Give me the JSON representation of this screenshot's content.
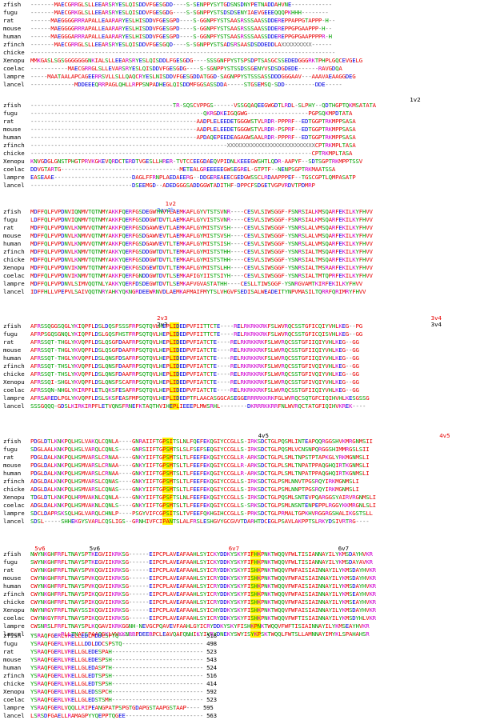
{
  "colors": {
    "hydrophobic": "#e60000",
    "polar": "#00a000",
    "basic": "#d000d0",
    "acidic": "#0000e0",
    "gap": "#666666",
    "highlight": "#fff200",
    "annotation_red": "#e60000",
    "annotation_blue": "#3366ff",
    "annotation_black": "#000000"
  },
  "blocks": [
    {
      "annotations": [],
      "rows": [
        {
          "name": "zfish",
          "seq": "-------MAECGRRGLSLLEEARSRYESLQISDDVFGESGDD----S-SENPPYSYTGDSNSDNYPETNADDAHVNE------------"
        },
        {
          "name": "fugu",
          "seq": "-------MAECGRKGLSLLEEARSRYESLQISDDVFGESGDG----S-SGNPPYSTSDSDSENYIAEVGEEEQQQPKHHH--------"
        },
        {
          "name": "rat",
          "seq": "------MAEGGGGRRRAPALLEAARARYESLHISDDVFGESGPD----S-GGNPFYSTSAASRSSSAASSDDEREPPAPPGTAPPP-H--"
        },
        {
          "name": "mouse",
          "seq": "------MAEGGGGRRRAPALLEAARARYESLHISDDVFGESGPD----S-GGNPFYSTSAASRSSSAASSDDEREPPGPGAAPPP-H--"
        },
        {
          "name": "human",
          "seq": "------MAEGGGARRRAPALLEAARARYESLHISDDVFGESGPD----S-GGNPFYSTSAASRSSSAASSDDEREPPGPGAAPPPPR-H"
        },
        {
          "name": "zfinch",
          "seq": "-------MAECGRRGLSLLEEARSRYESLQISDDVFGESGQD----S-SGNPPYSTSADSRSAASDSDDEDDLAXXXXXXXXX------"
        },
        {
          "name": "chicke",
          "seq": "------------------------------------------------------------------------------------------"
        },
        {
          "name": "Xenopu",
          "seq": "MMKGASLSGSGGGGGGGNKIALSLLEEARSRYESLQISDDLFGESGDG----SSSGNFPYSTSPSDPTSASGCSSEDEDGGGRKTPHPLGQCEVGELG"
        },
        {
          "name": "coelac",
          "seq": "-----------MAECGRRGLSLLEVARSRYESLQISDDVFGESGDG----S-SGNPPYSTSSDSSGENYVSDSDGDEDE------RAVGDQA"
        },
        {
          "name": "lampre",
          "seq": "-----MAATAALAPCAGEERRSVLLSLLQAQCRYESLNISDDVFGESGDDATGGD-SAGNPPYSTSSSASSDDDGGGAAV---AAAVAEAAGGDEG"
        },
        {
          "name": "lancel",
          "seq": "-------------MDDEEEQRRPAGLQHLLRPPSNPADHEGLQISDDMFGGSASSDDA-----STGSEMSQ-SDD---------DDE-----"
        }
      ]
    },
    {
      "annotations": [
        {
          "text": "1v2",
          "color": "#000000",
          "col": 90
        }
      ],
      "rows": [
        {
          "name": "zfish",
          "seq": "------------------------------------------TR-SQSCVPPGS------VSSGQAQEEGWGDTLRDL-SLPHY--QDTHGPTQKMSATATA"
        },
        {
          "name": "fugu",
          "seq": "---------------------------------------------------QKRGDKEIGQGWG------------------PGPSQKMPDTATA"
        },
        {
          "name": "rat",
          "seq": "-------------------------------------------------AADPLELEEDETGGGWSTVLRDR-PPPRF--EDTGGPTRKMPPSASA"
        },
        {
          "name": "mouse",
          "seq": "-------------------------------------------------AADPLELEEDETGGGWSTVLRDR-PSPRF--EDTGGPTRKMPPSASA"
        },
        {
          "name": "human",
          "seq": "-------------------------------------------------APDAQEPEEDEAGAGWSAALRDR-PPPRF--EDTGGPTRKMPPSASA"
        },
        {
          "name": "zfinch",
          "seq": "----------------------------------------------------------XXXXXXXXXXXXXXXXXXXXXXXXXXCPTRKMPLTASA"
        },
        {
          "name": "chicke",
          "seq": "-----------------------------------------------------------------------------------CPTRKMPLTASA"
        },
        {
          "name": "Xenopu",
          "seq": "KNVGDGLGNSTPHGTPRVKGKEVQRDCTERDTVGESLLHRER-TVTCCEEGDAEQVPIDNLKEEEGWSHTLQDR-AAPYF--SDTSGPTRKMPPTSSV"
        },
        {
          "name": "coelac",
          "seq": "DDVGTARTG-----------------------------------METEALGREEEEEGWSEGREL-GTPTF--NENPSGPTRKMAATSSA"
        },
        {
          "name": "lampre",
          "seq": "EASEAAE-----------------------DAGLFFRNPLAEDAEERG--DDGEREAEECGEDGWSSCLRDAAPPPEF--TGSCGPTLQMPASATP"
        },
        {
          "name": "lancel",
          "seq": "------------------------------DSEEMGD--ADEDGGGSADDGGWTADITHF-DPPCFSDGETVGPVRDVTPDMRP"
        }
      ]
    },
    {
      "annotations": [
        {
          "text": "1v2",
          "color": "#e60000",
          "col": 32
        },
        {
          "text": "2av2b",
          "color": "#3366ff",
          "col": 30
        }
      ],
      "rows": [
        {
          "name": "zfish",
          "seq": "MDFFQLFVPDNVIQNMVTQTNMYAKKFQERFGSDEGWTNVTLAEMKAFLGYVTSTSVNR----CESVLSIWSGGF-FSNRSIALKMSQARFEKILKYFHVV"
        },
        {
          "name": "fugu",
          "seq": "LDFFQLFVPDNVIQNMVTQTNMYAKKFQERFGSDDGWTDVTLAEMKAFLGYVISTSVNR----CESVLSIWSGGF-FSNRSIALKMSQARFEKILKYFHVV"
        },
        {
          "name": "rat",
          "seq": "MDFFQLFVPDNVLKNMVVQTNMYAKKFQERFGSDGAWVEVTLAEMKAFLGYMISTSVSH----CESVLSIWSGGF-YSNRSLALVMSQARFEKILKYFHVV"
        },
        {
          "name": "mouse",
          "seq": "MDFFQLFVPDNVLKNMVVQTNMYAKKFQERFGSDGAWVEVTLAEMKAFLGYMISTSVSH----CESVLSIWSGGF-YSNRSLALVMSQARFEKILKYFHVV"
        },
        {
          "name": "human",
          "seq": "MDFFQLFVPDNVLKNMVVQTNMYAKKFQERFGSDGAWVEVTLTEMKAFLGYMISTSISH----CESVLSIWSGGF-YSNRSLALVMSQARFEKILKYFHVV"
        },
        {
          "name": "zfinch",
          "seq": "MDFFQLFVPDNVLKNMVTQTNMYAKKYQERFGSDDGWTDVTLTEMKAFLGYMISTSTHH----CESVLSIWSGGF-YSNRSIALTMSQARFEKILKYFHVV"
        },
        {
          "name": "chicke",
          "seq": "MDFFQLFVPDNVLKNMVTQTNMYAKKYQERFGSDDGWTDVTLTEMKAFLGYMISTSTHH----CESVLSIWSGGF-YSNRSIALTMSQARFEKILKYFHVV"
        },
        {
          "name": "Xenopu",
          "seq": "MDFFQLFVPDNVIKNMVTQTNMYAKKFQEKFGSDGEWTDVTLTEMKAFLGYMISTSLHH----CESVLSIWSGGF-YSNRSIALTMSRARFEKILKYFHVV"
        },
        {
          "name": "coelac",
          "seq": "MDFFQLFVPDNVIKNMVTQTNMYAKKFQERFGNDDGWTDVTLSEMKAFIGYIISTSIYH----CESVLSIWSGGF-YSNRSIALTMTQPRFEKILKYFHVV"
        },
        {
          "name": "lampre",
          "seq": "MDFFQLFVPDNVLSIMVQQTNLYAKKYQERFDSDEGWTDVTLSEMKAFVGVASTATHH----CESLLTIWSGGF-YSNRGVAMTKIRFEKILKYFHVV"
        },
        {
          "name": "lancel",
          "seq": "IDFFHLLVPEPVLSAIVQQTNRYAHKYQKNGRDEEWRNVDLAEMKAFMAIFMYTSLVHGVFSEDISALWEADEITYNPVMASILTQRRFQRIMRYFHVV"
        }
      ]
    },
    {
      "annotations": [
        {
          "text": "2v3",
          "color": "#e60000",
          "col": 30
        },
        {
          "text": "2v3",
          "color": "#000000",
          "col": 30
        },
        {
          "text": "3v4",
          "color": "#e60000",
          "col": 95
        },
        {
          "text": "3v4",
          "color": "#000000",
          "col": 95
        }
      ],
      "rows": [
        {
          "name": "zfish",
          "seq": "AFRSSQGGSQGLYKIQPFLDSLDQSFSSSFRPSQTQVLHEPLIDEDPVFIITTCTE----RELRKRKKRKFSLWVRQCSSTGFICQIYVHLKEG--PG"
        },
        {
          "name": "fugu",
          "seq": "AFRPSGQSGNQLYKIQPFLDSLGQSFHSTFRPSQTQVLHEPLIDEDPVFIITTCTE----RELRKRKKRKFSLWVRQCSSTGFICQISVHLKEG--GG"
        },
        {
          "name": "rat",
          "seq": "AFRSSQT-THGLYKVQPFLDSLQSGFDAAFRPSQTQVLHEPLIDEDPVFIATCTE----RELRKRKKRKFSLWVRQCSSTGFIIQIYVHLKEG--GG"
        },
        {
          "name": "mouse",
          "seq": "AFRSSQT-THGLYKVQPFLDSLQSGFDAAFRPSQTQVLHEPLIDEDPVFIATCTE----RELRKRKKRKFSLWVRQCSSTGFIIQIYVHLKEG--GG"
        },
        {
          "name": "human",
          "seq": "AFRSSQT-THGLYKVQPFLDSLQNSFDSAFRPSQTQVLHEPLIDEDPVFIATCTE----RELRKRKKRKFSLWVRQCSSTGFIIQIYVHLKEG--GG"
        },
        {
          "name": "zfinch",
          "seq": "AFRSSQT-THSLYKVQPFLDSLQNSFDAAFRPSQTQVLHEPLIDEDPVFIATCTE----RELRKRKKRKFSLWVRQCSSTGFIVQIYVHLKEG--GG"
        },
        {
          "name": "chicke",
          "seq": "AFRSSQT-THSLYKVQPFLDSLQNSFDAAFRPSQTQVLHEPLIDEDPVFIATCTE----RELRKRKKRKFSLWVRQCSSTGFIVQIYVHLKEG--GG"
        },
        {
          "name": "Xenopu",
          "seq": "AFRSSQI-SHGLYKVQPFLDSLQNSFSCAFRPSQTQVLHEPLIDEDPVFIATCTE----RELRKRKKRKFSLWVRQCSSTGFIVQIYVHLKEG--GG"
        },
        {
          "name": "coelac",
          "seq": "AFRSSQN-NHGLYKIRPFLETLQKSFESAFRPSQTQVLHEPLIDEDPVFIATCTE----RELRKRKKRKFSLWVRQCSSTGFIIQIYVHLKEG--GG"
        },
        {
          "name": "lampre",
          "seq": "AFRSAREDLPGLYKVQPFLDSLSKSFEASFMPSQTQVLHEPLIDEDPTFLAACASGGCASEGGERRRRKKRKFGLWVRQCSQTGFCIQIHVHLKESGSSG"
        },
        {
          "name": "lancel",
          "seq": "SSSGQQQ-GDSLKIRKIRPFLETVQNSFRNEFKTAQTHVIHEPLIEEEPLMWSRHL--------DKRRRKKRRFNLWVRQCTATGFIQIHVKREK----"
        }
      ]
    },
    {
      "annotations": [
        {
          "text": "4v5",
          "color": "#000000",
          "col": 54
        },
        {
          "text": "4v5",
          "color": "#e60000",
          "col": 97
        }
      ],
      "rows": [
        {
          "name": "zfish",
          "seq": "PDGLDTLKNKPQLHSLVAKQLCQNLA----GNRAIIFTGPSITSLNLFQEFEKQGIYCCGLLS-IRKSDCTGLPQSMLINTEAPQQRGGSHVKMRGNMSII"
        },
        {
          "name": "fugu",
          "seq": "SDGLAALKNKPQLHSLVARQLCQNLS----GNRSIIFTGPSMTSLSLFSEFSEQGIYCCGLLS-IRKSDCTGLPQSMLVCNSNPQRGGSHIMMRGSLSII"
        },
        {
          "name": "rat",
          "seq": "PDGLDALKNKPQLHSMVARSLCRNAA----GNKYIIFTGPSMTSLTLFEEFEKQGIYCCGLLR-ARKSDCTGLPLSMLTNPSTPTAPKGLYRKMGNMSLI"
        },
        {
          "name": "mouse",
          "seq": "PDGLDALKNKPQLHSMVARSLCRNAA----GNKYIIFTGPSMTSLTLFEEFEKQGIYCCGLLR-ARKSDCTGLPLSMLTNPATPPAQGHQIRTKGNMSLI"
        },
        {
          "name": "human",
          "seq": "PDGLDALKNKPQLHSMVARSLCRNAA----GNKYIIFTGPSMTSLTLFEEFEKQGIYCCGLLR-ARKSDCTGLPLSMLTNPATPPAQGHQIRTKGNMSLI"
        },
        {
          "name": "zfinch",
          "seq": "ADGLDALKNKPQLHSMVARSLCQNAS----GNKYIIFTGPSMTSLTLFEEFEKQGIYCCGLLS-IRKSDCTGLPSMLNNVTPGSRQYIRKMGNMSLI"
        },
        {
          "name": "chicke",
          "seq": "ADGLDALKNKPQLHSMVARSLCQNAS----GNKYIIFTGPSMTSLTLFEEFEKQGIYCCGLLS-IRKSDCTGLPSMLNNPTPGSRQYIRKMGNMSLI"
        },
        {
          "name": "Xenopu",
          "seq": "TDGLDTLKNKPQLHRMVAKNLCQNLA----GNKYIIFTGPSFTSLNLFEEFEKQGIYCCGLLS-IRKSDCTGLPQSMLSNTEVPQARGGSYAIRVRGNMSLI"
        },
        {
          "name": "coelac",
          "seq": "ADGLDALKNKPQLHSMVAKNLCQNLS----GNKYIIFTGPSMTSLTLFEEFEKQGIYCCGLLS-SRKSDCTGLPSMLNSNTENPEPPLRGGYKKMRGNLSLI"
        },
        {
          "name": "lampre",
          "seq": "SDCLDAPRSKSQLHGLVARQLCHNLP----PSGYVIFCGPSITSLTVFEEFQKHGIHCCGLLS-PRKSDCTGLPRMALTGPKHVRGGRGSHALIKGSTSLL"
        },
        {
          "name": "lancel",
          "seq": "SDSL-----SHHEKGYSVARLCQSLIGS--GRNHIVFCIPANTSLALFRSLESHGVYGCGVVTDARHTDCEGLPSAVLAKPPTSLRKYDSIVRTRG----"
        }
      ]
    },
    {
      "annotations": [
        {
          "text": "5v6",
          "color": "#e60000",
          "col": 1
        },
        {
          "text": "5v6",
          "color": "#000000",
          "col": 14
        },
        {
          "text": "6v7",
          "color": "#e60000",
          "col": 47
        },
        {
          "text": "6v7",
          "color": "#000000",
          "col": 73
        }
      ],
      "rows": [
        {
          "name": "zfish",
          "seq": "NWYNKGHFRFLTNAYSPTKEGVIIKRKSG------EIPCPLAVEAFAAHLSYICKYDDKYSKYFIFHKPNKTWQQVFWLTISIANNAYILYKMSDAYHVKR"
        },
        {
          "name": "fugu",
          "seq": "SWYNKGHFRFLTNAYSPTKEGVIIKRKSG------EIPCPLAVEAFAAHLSYICKYDDKYSKYFIFHKPNKTWQQVFWLTISIANNAYILYKMSDAYAVKR"
        },
        {
          "name": "rat",
          "seq": "CWYNKGHFRFLTNAYSPVKQGVIIKRKSG------EIPCPLAVEAFAAHLSYICRYDDKYSKYFISHKPNKTWQQVFWFAISIAINNAYILYKMSDAYHVKR"
        },
        {
          "name": "mouse",
          "seq": "CWYNKGHFRFLTNAYSPVKQGVIIKRKSG------EIPCPLAVEAFAAHLSYICRYDDKYSKYFISHKPNKTWQQVFWFAISIAINNAYILYKMSDAYHVKR"
        },
        {
          "name": "human",
          "seq": "CWYNKGHFRFLTNAYSPVKQGVIIKRKSG------EIPCPLAVEAFAAHLSYICRYDDKYSKYFISHKPNKTWQQVFWFAISIAINNAYILYKMSDAYHVKR"
        },
        {
          "name": "zfinch",
          "seq": "CWYNKGHFRFLTNAYSPIKQGVIIKRKSG------EIPCPLAVEAFAAHLSYICRYDDKYSKYFISHKPNKTWQQVFWFAISIAINNAYILYKMSEAYHVKR"
        },
        {
          "name": "chicke",
          "seq": "CWYNKGHFRFLTNAYSPIKQGVIIKRKSG------EIPCPLAVEAFAAHLSYICRYDDKYSKYFISHKPNKTWQQVFWFAISIAINNAYILYKMSEAYHVKR"
        },
        {
          "name": "Xenopu",
          "seq": "NWYNRGYFRFLTNAYSSIKQGVIIKRKSG------EIPCPLAVEAFAAHLSYICHYDDKYSKYFISHKPNKTWQQVFWFAISIAINNAYILYKMSDAYHVKR"
        },
        {
          "name": "coelac",
          "seq": "CWYNKGYFRFLTNAYSPIKQGVIIKRKSG------EIPCPLAVEAFAAHLSYICRYDDKYSKYFISHKPNKTWQQVFWFTISIAINNAYILYKMSDYHLVKR"
        },
        {
          "name": "lampre",
          "seq": "CWSNRSLFRFLTNAYSPLKQGAVIKRKGGNH-NEVGCPQAVEVFAAHLGYICRYDDKYSKYFISHKPNKTWQQVFWFTISIAINNAYILYKMSEAYHVKR"
        },
        {
          "name": "lancel",
          "seq": "---------RLLTNAFSPAAQGKLVVKKNRRPDEERPCLEAVQAFQNHIKYIYRYDNEKYSWYISYKPSKTWQQLFWTSLLAMNNAYIMYKLSPAHAHSR"
        }
      ]
    },
    {
      "annotations": [],
      "rows": [
        {
          "name": "zfish",
          "seq": "YSRAQFGERLVRELLEDLMDDCSPTQ------------------------- 518"
        },
        {
          "name": "fugu",
          "seq": "YSRAQFGERLVRELLLDDLDDCSPSTQ------------------------ 498"
        },
        {
          "name": "rat",
          "seq": "YSRAQFGERLVRELLGLEDESPAH--------------------------- 523"
        },
        {
          "name": "mouse",
          "seq": "YSRAQFGERLVRELLGLEDESPSH--------------------------- 543"
        },
        {
          "name": "human",
          "seq": "YSRAQFGERLVRELLGLEDASPTH--------------------------- 524"
        },
        {
          "name": "zfinch",
          "seq": "YSRAQFGERLVKELLGLEDTSPSH--------------------------- 516"
        },
        {
          "name": "chicke",
          "seq": "YSRAQFGERLVKELLGLEDTSPSH--------------------------- 414"
        },
        {
          "name": "Xenopu",
          "seq": "YSRAQFGERLVRELLGLEDSSPCH--------------------------- 592"
        },
        {
          "name": "coelac",
          "seq": "YSRAQFGERLVKELLGLEDSTSMH--------------------------- 523"
        },
        {
          "name": "lampre",
          "seq": "YSRAQFGERLVQQLLRIPEANGPATPSPGTGDAPGSTAAPGSTAAP---- 595"
        },
        {
          "name": "lancel",
          "seq": "LSRSDFGAELLRAMAGPYYQEPPTQGEE----------------------- 563"
        }
      ]
    }
  ]
}
